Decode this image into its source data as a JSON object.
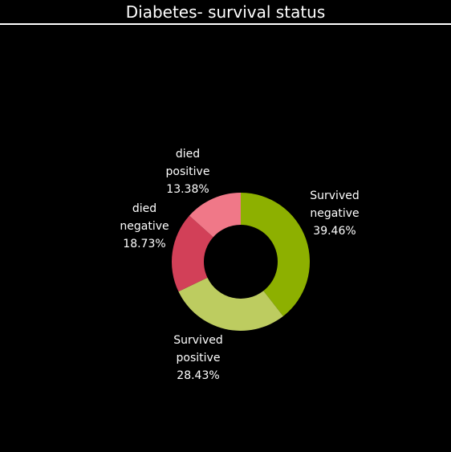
{
  "chart_data": {
    "type": "pie",
    "title": "Diabetes- survival status",
    "donut": true,
    "slices": [
      {
        "line1": "Survived",
        "line2": "negative",
        "label": "39.46%",
        "value": 39.46,
        "color": "#8db000"
      },
      {
        "line1": "Survived",
        "line2": "positive",
        "label": "28.43%",
        "value": 28.43,
        "color": "#bdcc60"
      },
      {
        "line1": "died",
        "line2": "negative",
        "label": "18.73%",
        "value": 18.73,
        "color": "#d24058"
      },
      {
        "line1": "died",
        "line2": "positive",
        "label": "13.38%",
        "value": 13.38,
        "color": "#f07888"
      }
    ]
  }
}
